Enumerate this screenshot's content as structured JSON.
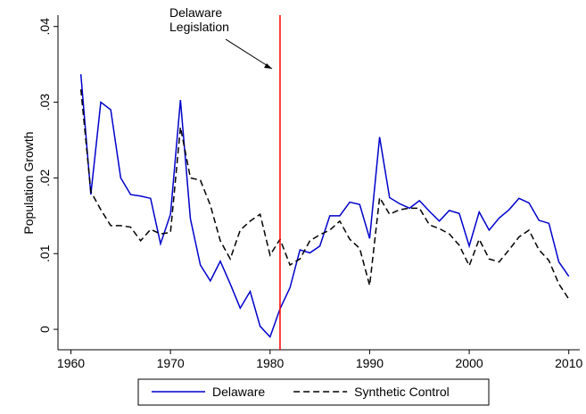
{
  "chart_data": {
    "type": "line",
    "y_label": "Population Growth",
    "annotation": [
      "Delaware",
      "Legislation"
    ],
    "vline": {
      "x": 1981,
      "color": "#ff0000"
    },
    "x": [
      1961,
      1962,
      1963,
      1964,
      1965,
      1966,
      1967,
      1968,
      1969,
      1970,
      1971,
      1972,
      1973,
      1974,
      1975,
      1976,
      1977,
      1978,
      1979,
      1980,
      1981,
      1982,
      1983,
      1984,
      1985,
      1986,
      1987,
      1988,
      1989,
      1990,
      1991,
      1992,
      1993,
      1994,
      1995,
      1996,
      1997,
      1998,
      1999,
      2000,
      2001,
      2002,
      2003,
      2004,
      2005,
      2006,
      2007,
      2008,
      2009,
      2010
    ],
    "series": [
      {
        "name": "Delaware",
        "color": "#0000cc",
        "line_style": "solid",
        "values": [
          0.0337,
          0.0178,
          0.03,
          0.029,
          0.02,
          0.0178,
          0.0176,
          0.0173,
          0.0113,
          0.0152,
          0.0303,
          0.0146,
          0.0085,
          0.0064,
          0.009,
          0.006,
          0.0028,
          0.005,
          0.0004,
          -0.001,
          0.0027,
          0.0055,
          0.0105,
          0.0101,
          0.011,
          0.015,
          0.015,
          0.0168,
          0.0165,
          0.012,
          0.0254,
          0.0174,
          0.0166,
          0.016,
          0.017,
          0.0156,
          0.0143,
          0.0157,
          0.0153,
          0.011,
          0.0155,
          0.0131,
          0.0147,
          0.0158,
          0.0173,
          0.0167,
          0.0144,
          0.014,
          0.0089,
          0.007
        ]
      },
      {
        "name": "Synthetic Control",
        "color": "#000000",
        "line_style": "dashed",
        "values": [
          0.0317,
          0.0182,
          0.0158,
          0.0137,
          0.0137,
          0.0135,
          0.0117,
          0.0132,
          0.0126,
          0.0128,
          0.0267,
          0.02,
          0.0197,
          0.0164,
          0.0117,
          0.0093,
          0.0131,
          0.0143,
          0.0152,
          0.0098,
          0.0119,
          0.0085,
          0.0093,
          0.0117,
          0.0125,
          0.0131,
          0.0143,
          0.0119,
          0.0107,
          0.0058,
          0.0174,
          0.0152,
          0.0158,
          0.016,
          0.016,
          0.0138,
          0.0133,
          0.0126,
          0.0111,
          0.0084,
          0.0119,
          0.0093,
          0.0089,
          0.0105,
          0.0122,
          0.0131,
          0.0105,
          0.0091,
          0.006,
          0.004
        ]
      }
    ],
    "xlim": [
      1958.7,
      2011.1
    ],
    "ylim": [
      -0.0027,
      0.0415
    ],
    "xticks": [
      1960,
      1970,
      1980,
      1990,
      2000,
      2010
    ],
    "yticks": [
      0,
      {
        "value": 0.01,
        "label": ".01"
      },
      {
        "value": 0.02,
        "label": ".02"
      },
      {
        "value": 0.03,
        "label": ".03"
      },
      {
        "value": 0.04,
        "label": ".04"
      }
    ],
    "grid": false,
    "legend": "bottom"
  }
}
